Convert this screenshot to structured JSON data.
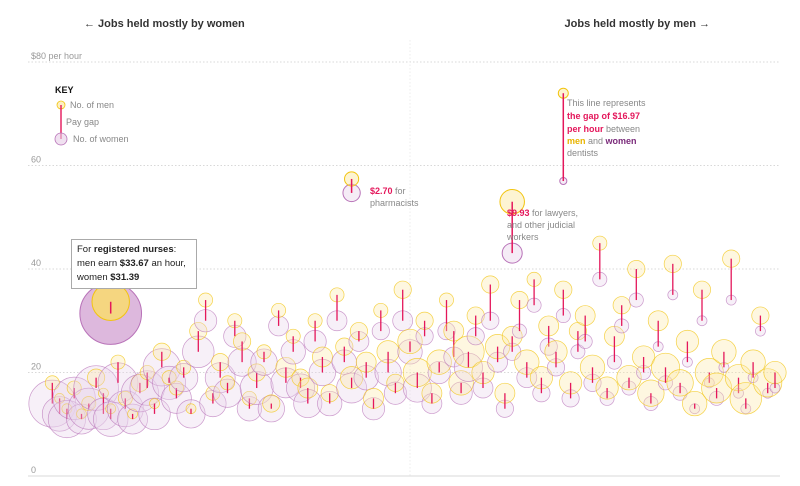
{
  "header": {
    "left": "← Jobs held mostly by women",
    "right": "Jobs held mostly by men →"
  },
  "colors": {
    "men": "#f2c40f",
    "women": "#b872b8",
    "gap": "#e4175b",
    "grid": "#cccccc"
  },
  "key": {
    "title": "KEY",
    "men": "No. of men",
    "gap": "Pay gap",
    "women": "No. of women"
  },
  "tooltip": {
    "pre": "For ",
    "job": "registered nurses",
    "mid1": ": men earn ",
    "men_wage": "$33.67",
    "mid2": " an hour, women ",
    "women_wage": "$31.39"
  },
  "annotations": {
    "dentists": {
      "l1": "This line represents",
      "l2": "the gap of $16.97",
      "l3": "per hour",
      "l3b": " between",
      "l4a": "men",
      "l4b": " and ",
      "l4c": "women",
      "l5": "dentists"
    },
    "pharmacists": {
      "val": "$2.70",
      "l1": " for",
      "l2": "pharmacists"
    },
    "lawyers": {
      "val": "$9.93",
      "l1": " for lawyers,",
      "l2": "and other judicial",
      "l3": "workers"
    }
  },
  "chart_data": {
    "type": "scatter",
    "title": "",
    "xlabel": "",
    "ylabel": "",
    "x_axis": "share of jobs held by men, from mostly women (left) to mostly men (right)",
    "xlim": [
      0,
      100
    ],
    "ylim": [
      0,
      80
    ],
    "y_ticks": [
      {
        "value": 0,
        "label": "0"
      },
      {
        "value": 20,
        "label": "20"
      },
      {
        "value": 40,
        "label": "40"
      },
      {
        "value": 60,
        "label": "60"
      },
      {
        "value": 80,
        "label": "$80 per hour"
      }
    ],
    "gridlines": true,
    "series_encoding": "each occupation: yellow circle at men's hourly wage sized by number of men, purple circle at women's hourly wage sized by number of women, red line = pay gap",
    "highlighted": [
      {
        "job": "registered nurses",
        "x": 9,
        "men_wage": 33.67,
        "women_wage": 31.39,
        "men_count": 14,
        "women_count": 38
      },
      {
        "job": "pharmacists",
        "x": 42,
        "men_wage": 57.4,
        "women_wage": 54.7,
        "men_count": 2,
        "women_count": 3
      },
      {
        "job": "lawyers, and other judicial workers",
        "x": 64,
        "men_wage": 53.0,
        "women_wage": 43.07,
        "men_count": 6,
        "women_count": 4
      },
      {
        "job": "dentists",
        "x": 71,
        "men_wage": 73.97,
        "women_wage": 57.0,
        "men_count": 1,
        "women_count": 0.5
      }
    ],
    "occupations": [
      [
        1,
        18,
        14,
        2,
        22
      ],
      [
        2,
        15,
        12,
        1,
        12
      ],
      [
        3,
        13,
        11,
        1,
        14
      ],
      [
        4,
        17,
        15,
        2,
        18
      ],
      [
        5,
        12,
        11,
        1,
        9
      ],
      [
        6,
        14,
        13,
        2,
        17
      ],
      [
        7,
        19,
        17,
        3,
        20
      ],
      [
        8,
        16,
        12,
        1,
        10
      ],
      [
        9,
        13,
        11,
        1,
        12
      ],
      [
        10,
        22,
        18,
        2,
        16
      ],
      [
        11,
        15,
        13,
        2,
        13
      ],
      [
        12,
        12,
        11,
        1,
        9
      ],
      [
        13,
        18,
        16,
        3,
        14
      ],
      [
        14,
        20,
        17,
        2,
        12
      ],
      [
        15,
        14,
        12,
        1,
        10
      ],
      [
        16,
        24,
        21,
        3,
        14
      ],
      [
        17,
        19,
        18,
        2,
        11
      ],
      [
        18,
        17,
        15,
        2,
        9
      ],
      [
        19,
        21,
        19,
        2,
        8
      ],
      [
        20,
        13,
        12,
        1,
        8
      ],
      [
        21,
        28,
        24,
        3,
        10
      ],
      [
        22,
        34,
        30,
        2,
        5
      ],
      [
        23,
        16,
        14,
        2,
        7
      ],
      [
        24,
        22,
        19,
        3,
        9
      ],
      [
        25,
        18,
        16,
        2,
        8
      ],
      [
        26,
        30,
        27,
        2,
        5
      ],
      [
        27,
        26,
        22,
        3,
        8
      ],
      [
        28,
        15,
        13,
        2,
        6
      ],
      [
        29,
        20,
        17,
        3,
        11
      ],
      [
        30,
        24,
        22,
        2,
        7
      ],
      [
        31,
        14,
        13,
        3,
        7
      ],
      [
        32,
        32,
        29,
        2,
        4
      ],
      [
        33,
        21,
        18,
        4,
        9
      ],
      [
        34,
        27,
        24,
        2,
        6
      ],
      [
        35,
        19,
        17,
        3,
        8
      ],
      [
        36,
        17,
        14,
        4,
        8
      ],
      [
        37,
        30,
        26,
        2,
        5
      ],
      [
        38,
        23,
        20,
        4,
        7
      ],
      [
        39,
        16,
        14,
        3,
        6
      ],
      [
        40,
        35,
        30,
        2,
        4
      ],
      [
        41,
        25,
        22,
        3,
        6
      ],
      [
        42,
        19,
        17,
        5,
        9
      ],
      [
        43,
        28,
        26,
        3,
        4
      ],
      [
        44,
        22,
        19,
        4,
        6
      ],
      [
        45,
        15,
        13,
        4,
        5
      ],
      [
        46,
        32,
        28,
        2,
        3
      ],
      [
        47,
        24,
        20,
        5,
        7
      ],
      [
        48,
        18,
        16,
        3,
        5
      ],
      [
        49,
        36,
        30,
        3,
        4
      ],
      [
        50,
        26,
        24,
        6,
        6
      ],
      [
        51,
        20,
        17,
        8,
        8
      ],
      [
        52,
        30,
        27,
        3,
        3
      ],
      [
        53,
        16,
        14,
        4,
        4
      ],
      [
        54,
        22,
        20,
        6,
        5
      ],
      [
        55,
        34,
        28,
        2,
        3
      ],
      [
        56,
        28,
        23,
        4,
        4
      ],
      [
        57,
        18,
        16,
        6,
        5
      ],
      [
        58,
        24,
        21,
        10,
        8
      ],
      [
        59,
        31,
        27,
        3,
        3
      ],
      [
        60,
        20,
        17,
        5,
        4
      ],
      [
        61,
        37,
        30,
        3,
        3
      ],
      [
        62,
        25,
        22,
        6,
        4
      ],
      [
        63,
        16,
        13,
        4,
        3
      ],
      [
        64,
        27,
        24,
        4,
        3
      ],
      [
        65,
        34,
        28,
        3,
        2
      ],
      [
        66,
        22,
        19,
        6,
        4
      ],
      [
        67,
        38,
        33,
        2,
        2
      ],
      [
        68,
        19,
        16,
        5,
        3
      ],
      [
        69,
        29,
        25,
        4,
        3
      ],
      [
        70,
        24,
        21,
        5,
        3
      ],
      [
        71,
        36,
        31,
        3,
        2
      ],
      [
        72,
        18,
        15,
        5,
        3
      ],
      [
        73,
        28,
        24,
        3,
        2
      ],
      [
        74,
        31,
        26,
        4,
        2
      ],
      [
        75,
        21,
        18,
        6,
        3
      ],
      [
        76,
        45,
        38,
        2,
        2
      ],
      [
        77,
        17,
        15,
        5,
        2
      ],
      [
        78,
        27,
        22,
        4,
        2
      ],
      [
        79,
        33,
        29,
        3,
        2
      ],
      [
        80,
        19,
        17,
        6,
        2
      ],
      [
        81,
        40,
        34,
        3,
        2
      ],
      [
        82,
        23,
        20,
        5,
        2
      ],
      [
        83,
        16,
        14,
        7,
        2
      ],
      [
        84,
        30,
        25,
        4,
        1
      ],
      [
        85,
        21,
        18,
        8,
        2
      ],
      [
        86,
        41,
        35,
        3,
        1
      ],
      [
        87,
        18,
        16,
        7,
        2
      ],
      [
        88,
        26,
        22,
        5,
        1
      ],
      [
        89,
        14,
        13,
        6,
        1
      ],
      [
        90,
        36,
        30,
        3,
        1
      ],
      [
        91,
        20,
        18,
        8,
        1
      ],
      [
        92,
        17,
        15,
        9,
        2
      ],
      [
        93,
        24,
        21,
        6,
        1
      ],
      [
        94,
        42,
        34,
        3,
        1
      ],
      [
        95,
        19,
        16,
        7,
        1
      ],
      [
        96,
        15,
        13,
        10,
        1
      ],
      [
        97,
        22,
        19,
        6,
        1
      ],
      [
        98,
        31,
        28,
        3,
        1
      ],
      [
        99,
        18,
        16,
        8,
        1
      ],
      [
        100,
        20,
        17,
        5,
        1
      ]
    ]
  }
}
